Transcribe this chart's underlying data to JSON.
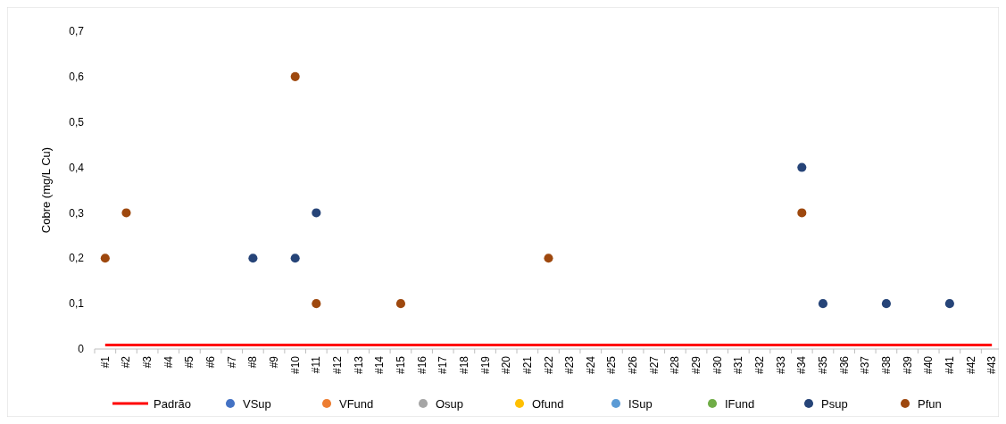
{
  "chart_data": {
    "type": "scatter",
    "ylabel": "Cobre (mg/L Cu)",
    "categories": [
      "#1",
      "#2",
      "#3",
      "#4",
      "#5",
      "#6",
      "#7",
      "#8",
      "#9",
      "#10",
      "#11",
      "#12",
      "#13",
      "#14",
      "#15",
      "#16",
      "#17",
      "#18",
      "#19",
      "#20",
      "#21",
      "#22",
      "#23",
      "#24",
      "#25",
      "#26",
      "#27",
      "#28",
      "#29",
      "#30",
      "#31",
      "#32",
      "#33",
      "#34",
      "#35",
      "#36",
      "#37",
      "#38",
      "#39",
      "#40",
      "#41",
      "#42",
      "#43"
    ],
    "ylim": [
      0,
      0.7
    ],
    "yticks": [
      {
        "value": 0,
        "label": "0"
      },
      {
        "value": 0.1,
        "label": "0,1"
      },
      {
        "value": 0.2,
        "label": "0,2"
      },
      {
        "value": 0.3,
        "label": "0,3"
      },
      {
        "value": 0.4,
        "label": "0,4"
      },
      {
        "value": 0.5,
        "label": "0,5"
      },
      {
        "value": 0.6,
        "label": "0,6"
      },
      {
        "value": 0.7,
        "label": "0,7"
      }
    ],
    "grid": false,
    "legend": "bottom",
    "marker": "circle",
    "series": [
      {
        "name": "Padrão",
        "type": "line",
        "marker": "none",
        "color": "#ff0000",
        "line_style": "solid",
        "values": [
          0.009,
          0.009,
          0.009,
          0.009,
          0.009,
          0.009,
          0.009,
          0.009,
          0.009,
          0.009,
          0.009,
          0.009,
          0.009,
          0.009,
          0.009,
          0.009,
          0.009,
          0.009,
          0.009,
          0.009,
          0.009,
          0.009,
          0.009,
          0.009,
          0.009,
          0.009,
          0.009,
          0.009,
          0.009,
          0.009,
          0.009,
          0.009,
          0.009,
          0.009,
          0.009,
          0.009,
          0.009,
          0.009,
          0.009,
          0.009,
          0.009,
          0.009,
          0.009
        ]
      },
      {
        "name": "VSup",
        "color": "#4472c4",
        "values": [
          null,
          null,
          null,
          null,
          null,
          null,
          null,
          null,
          null,
          null,
          null,
          null,
          null,
          null,
          null,
          null,
          null,
          null,
          null,
          null,
          null,
          null,
          null,
          null,
          null,
          null,
          null,
          null,
          null,
          null,
          null,
          null,
          null,
          null,
          null,
          null,
          null,
          null,
          null,
          null,
          null,
          null,
          null
        ]
      },
      {
        "name": "VFund",
        "color": "#ed7d31",
        "values": [
          null,
          null,
          null,
          null,
          null,
          null,
          null,
          null,
          null,
          null,
          null,
          null,
          null,
          null,
          null,
          null,
          null,
          null,
          null,
          null,
          null,
          null,
          null,
          null,
          null,
          null,
          null,
          null,
          null,
          null,
          null,
          null,
          null,
          null,
          null,
          null,
          null,
          null,
          null,
          null,
          null,
          null,
          null
        ]
      },
      {
        "name": "Osup",
        "color": "#a5a5a5",
        "values": [
          null,
          null,
          null,
          null,
          null,
          null,
          null,
          null,
          null,
          null,
          null,
          null,
          null,
          null,
          null,
          null,
          null,
          null,
          null,
          null,
          null,
          null,
          null,
          null,
          null,
          null,
          null,
          null,
          null,
          null,
          null,
          null,
          null,
          null,
          null,
          null,
          null,
          null,
          null,
          null,
          null,
          null,
          null
        ]
      },
      {
        "name": "Ofund",
        "color": "#ffc000",
        "values": [
          null,
          null,
          null,
          null,
          null,
          null,
          null,
          null,
          null,
          null,
          null,
          null,
          null,
          null,
          null,
          null,
          null,
          null,
          null,
          null,
          null,
          null,
          null,
          null,
          null,
          null,
          null,
          null,
          null,
          null,
          null,
          null,
          null,
          null,
          null,
          null,
          null,
          null,
          null,
          null,
          null,
          null,
          null
        ]
      },
      {
        "name": "ISup",
        "color": "#5b9bd5",
        "values": [
          null,
          null,
          null,
          null,
          null,
          null,
          null,
          null,
          null,
          null,
          null,
          null,
          null,
          null,
          null,
          null,
          null,
          null,
          null,
          null,
          null,
          null,
          null,
          null,
          null,
          null,
          null,
          null,
          null,
          null,
          null,
          null,
          null,
          null,
          null,
          null,
          null,
          null,
          null,
          null,
          null,
          null,
          null
        ]
      },
      {
        "name": "IFund",
        "color": "#70ad47",
        "values": [
          null,
          null,
          null,
          null,
          null,
          null,
          null,
          null,
          null,
          null,
          null,
          null,
          null,
          null,
          null,
          null,
          null,
          null,
          null,
          null,
          null,
          null,
          null,
          null,
          null,
          null,
          null,
          null,
          null,
          null,
          null,
          null,
          null,
          null,
          null,
          null,
          null,
          null,
          null,
          null,
          null,
          null,
          null
        ]
      },
      {
        "name": "Psup",
        "color": "#264478",
        "values": [
          null,
          null,
          null,
          null,
          null,
          null,
          null,
          0.2,
          null,
          0.2,
          0.3,
          null,
          null,
          null,
          null,
          null,
          null,
          null,
          null,
          null,
          null,
          null,
          null,
          null,
          null,
          null,
          null,
          null,
          null,
          null,
          null,
          null,
          null,
          0.4,
          0.1,
          null,
          null,
          0.1,
          null,
          null,
          0.1,
          null,
          null
        ]
      },
      {
        "name": "Pfun",
        "color": "#9e480e",
        "values": [
          0.2,
          0.3,
          null,
          null,
          null,
          null,
          null,
          null,
          null,
          0.6,
          0.1,
          null,
          null,
          null,
          0.1,
          null,
          null,
          null,
          null,
          null,
          null,
          0.2,
          null,
          null,
          null,
          null,
          null,
          null,
          null,
          null,
          null,
          null,
          null,
          0.3,
          null,
          null,
          null,
          null,
          null,
          null,
          null,
          null,
          null
        ]
      }
    ]
  }
}
